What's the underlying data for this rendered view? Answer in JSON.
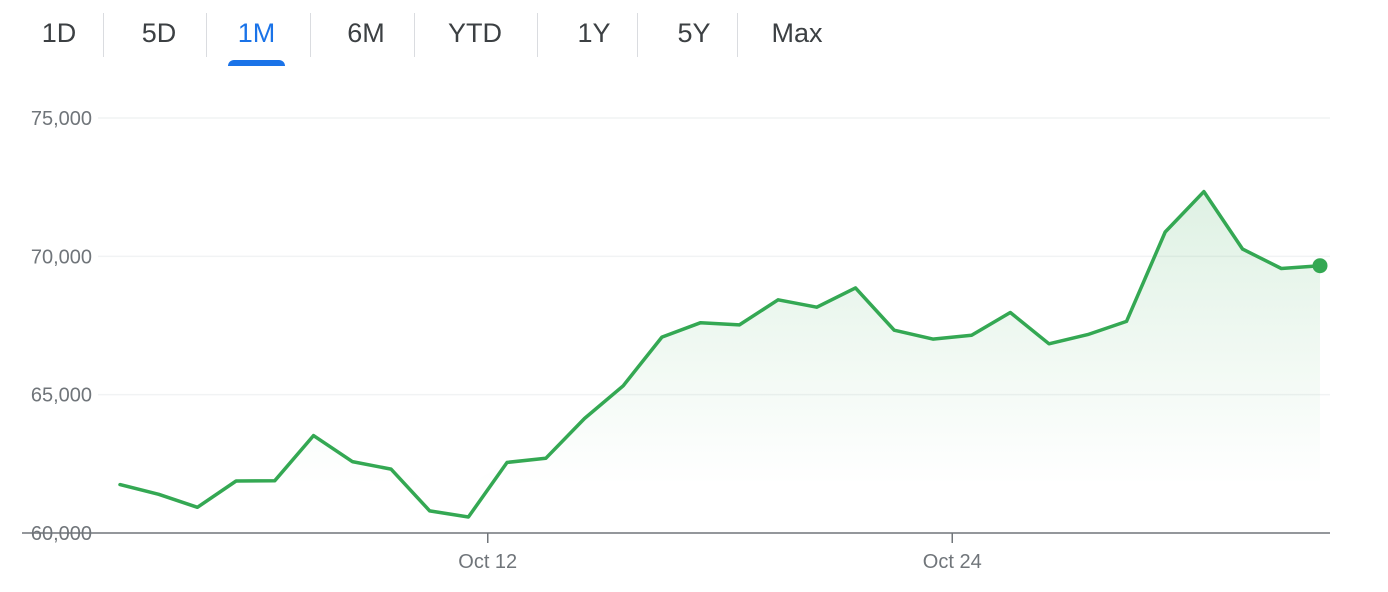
{
  "range_tabs": {
    "items": [
      {
        "label": "1D",
        "active": false
      },
      {
        "label": "5D",
        "active": false
      },
      {
        "label": "1M",
        "active": true
      },
      {
        "label": "6M",
        "active": false
      },
      {
        "label": "YTD",
        "active": false
      },
      {
        "label": "1Y",
        "active": false
      },
      {
        "label": "5Y",
        "active": false
      },
      {
        "label": "Max",
        "active": false
      }
    ]
  },
  "colors": {
    "line": "#34a853",
    "active_tab": "#1a73e8",
    "grid": "#f1f3f4",
    "axis": "#70757a"
  },
  "chart_data": {
    "type": "line",
    "title": "",
    "xlabel": "",
    "ylabel": "",
    "ylim": [
      60000,
      75000
    ],
    "yticks": [
      75000,
      70000,
      65000,
      60000
    ],
    "ytick_labels": [
      "75,000",
      "70,000",
      "65,000",
      "60,000"
    ],
    "xtick_labels": [
      "Oct 12",
      "Oct 24"
    ],
    "xtick_index": [
      9.5,
      21.5
    ],
    "grid": true,
    "series": [
      {
        "values": [
          61750,
          61400,
          60930,
          61880,
          61890,
          63520,
          62580,
          62310,
          60800,
          60580,
          62550,
          62700,
          64140,
          65320,
          67080,
          67600,
          67520,
          68430,
          68160,
          68860,
          67330,
          67010,
          67150,
          67970,
          66840,
          67170,
          67650,
          70880,
          72340,
          70260,
          69560,
          69660
        ]
      }
    ],
    "last_point_marker": true
  }
}
